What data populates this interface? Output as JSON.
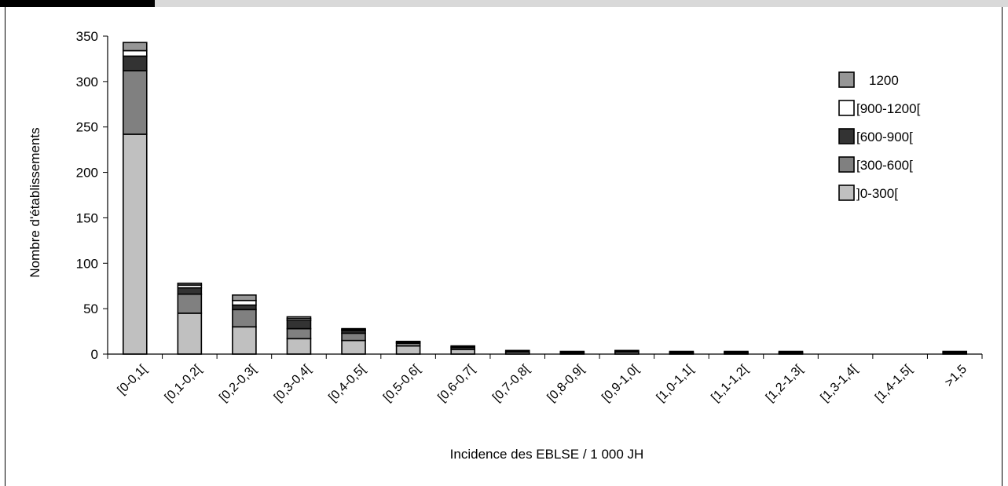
{
  "chart_data": {
    "type": "bar",
    "stacked": true,
    "xlabel": "Incidence des EBLSE / 1 000 JH",
    "ylabel": "Nombre d'établissements",
    "ylim": [
      0,
      350
    ],
    "yticks": [
      0,
      50,
      100,
      150,
      200,
      250,
      300,
      350
    ],
    "grid": false,
    "legend_position": "right",
    "categories": [
      "[0-0,1[",
      "[0,1-0,2[",
      "[0,2-0,3[",
      "[0,3-0,4[",
      "[0,4-0,5[",
      "[0,5-0,6[",
      "[0,6-0,7[",
      "[0,7-0,8[",
      "[0,8-0,9[",
      "[0,9-1,0[",
      "[1,0-1,1[",
      "[1,1-1,2[",
      "[1,2-1,3[",
      "[1,3-1,4[",
      "[1,4-1,5[",
      ">1,5"
    ],
    "series": [
      {
        "name": "]0-300[",
        "color": "#c0c0c0",
        "values": [
          242,
          45,
          30,
          17,
          15,
          9,
          5,
          2,
          1,
          2,
          1,
          1,
          1,
          0,
          0,
          1
        ]
      },
      {
        "name": "[300-600[",
        "color": "#808080",
        "values": [
          70,
          21,
          19,
          11,
          8,
          3,
          2,
          1,
          1,
          1,
          1,
          1,
          1,
          0,
          0,
          1
        ]
      },
      {
        "name": "[600-900[",
        "color": "#333333",
        "values": [
          16,
          7,
          5,
          9,
          3,
          1,
          1,
          1,
          1,
          0,
          1,
          1,
          1,
          0,
          0,
          1
        ]
      },
      {
        "name": "[900-1200[",
        "color": "#ffffff",
        "values": [
          6,
          3,
          5,
          2,
          1,
          0,
          0,
          0,
          0,
          1,
          0,
          0,
          0,
          0,
          0,
          0
        ]
      },
      {
        "name": "1200",
        "color": "#969696",
        "values": [
          9,
          2,
          6,
          2,
          1,
          1,
          1,
          0,
          0,
          0,
          0,
          0,
          0,
          0,
          0,
          0
        ]
      }
    ]
  }
}
